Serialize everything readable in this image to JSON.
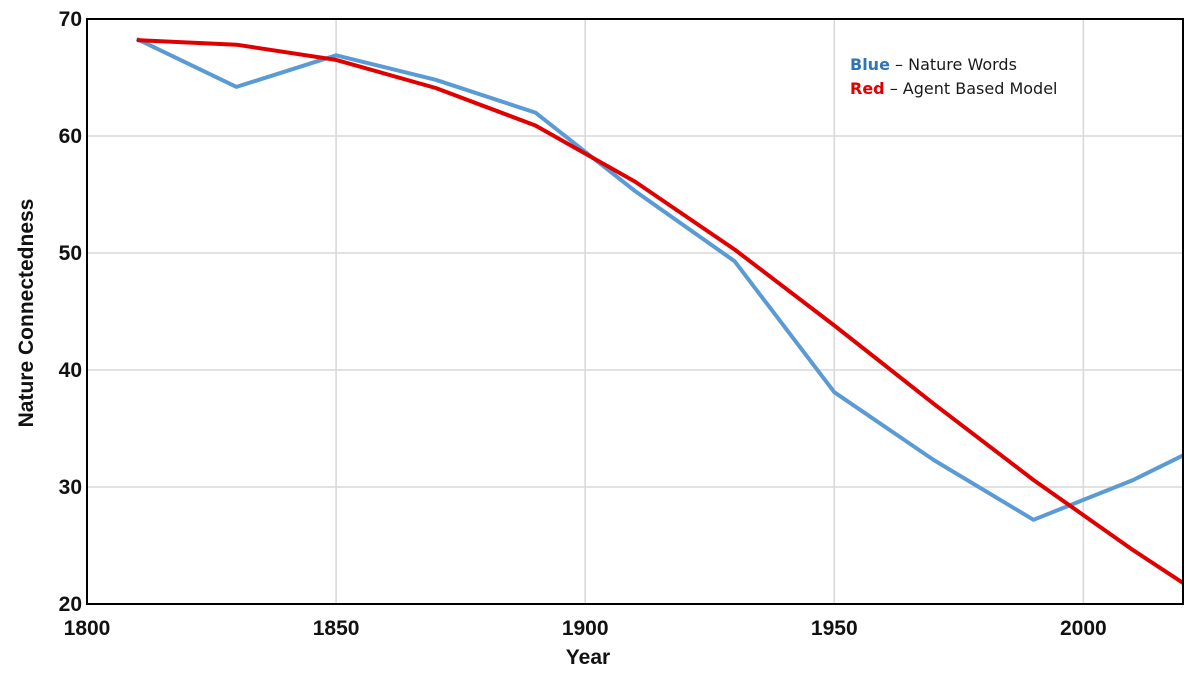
{
  "chart_data": {
    "type": "line",
    "xlabel": "Year",
    "ylabel": "Nature Connectedness",
    "xlim": [
      1800,
      2020
    ],
    "ylim": [
      20,
      70
    ],
    "x_ticks": [
      "1800",
      "1850",
      "1900",
      "1950",
      "2000"
    ],
    "y_ticks": [
      "20",
      "30",
      "40",
      "50",
      "60",
      "70"
    ],
    "grid": true,
    "legend_placement": "top-right",
    "legend": [
      {
        "key": "Blue",
        "text": " – Nature Words",
        "color": "#2e75b6"
      },
      {
        "key": "Red",
        "text": " – Agent Based Model",
        "color": "#e00000"
      }
    ],
    "series": [
      {
        "color": "#5b9bd5",
        "x": [
          1810,
          1830,
          1850,
          1870,
          1890,
          1910,
          1930,
          1950,
          1970,
          1990,
          2010,
          2020
        ],
        "y": [
          68.3,
          64.2,
          66.9,
          64.8,
          62.0,
          55.3,
          49.3,
          38.1,
          32.3,
          27.2,
          30.6,
          32.7
        ]
      },
      {
        "color": "#e00000",
        "x": [
          1810,
          1830,
          1850,
          1870,
          1890,
          1910,
          1930,
          1950,
          1970,
          1990,
          2010,
          2020
        ],
        "y": [
          68.2,
          67.8,
          66.5,
          64.1,
          60.9,
          56.1,
          50.3,
          43.8,
          37.1,
          30.6,
          24.6,
          21.8
        ]
      }
    ]
  }
}
